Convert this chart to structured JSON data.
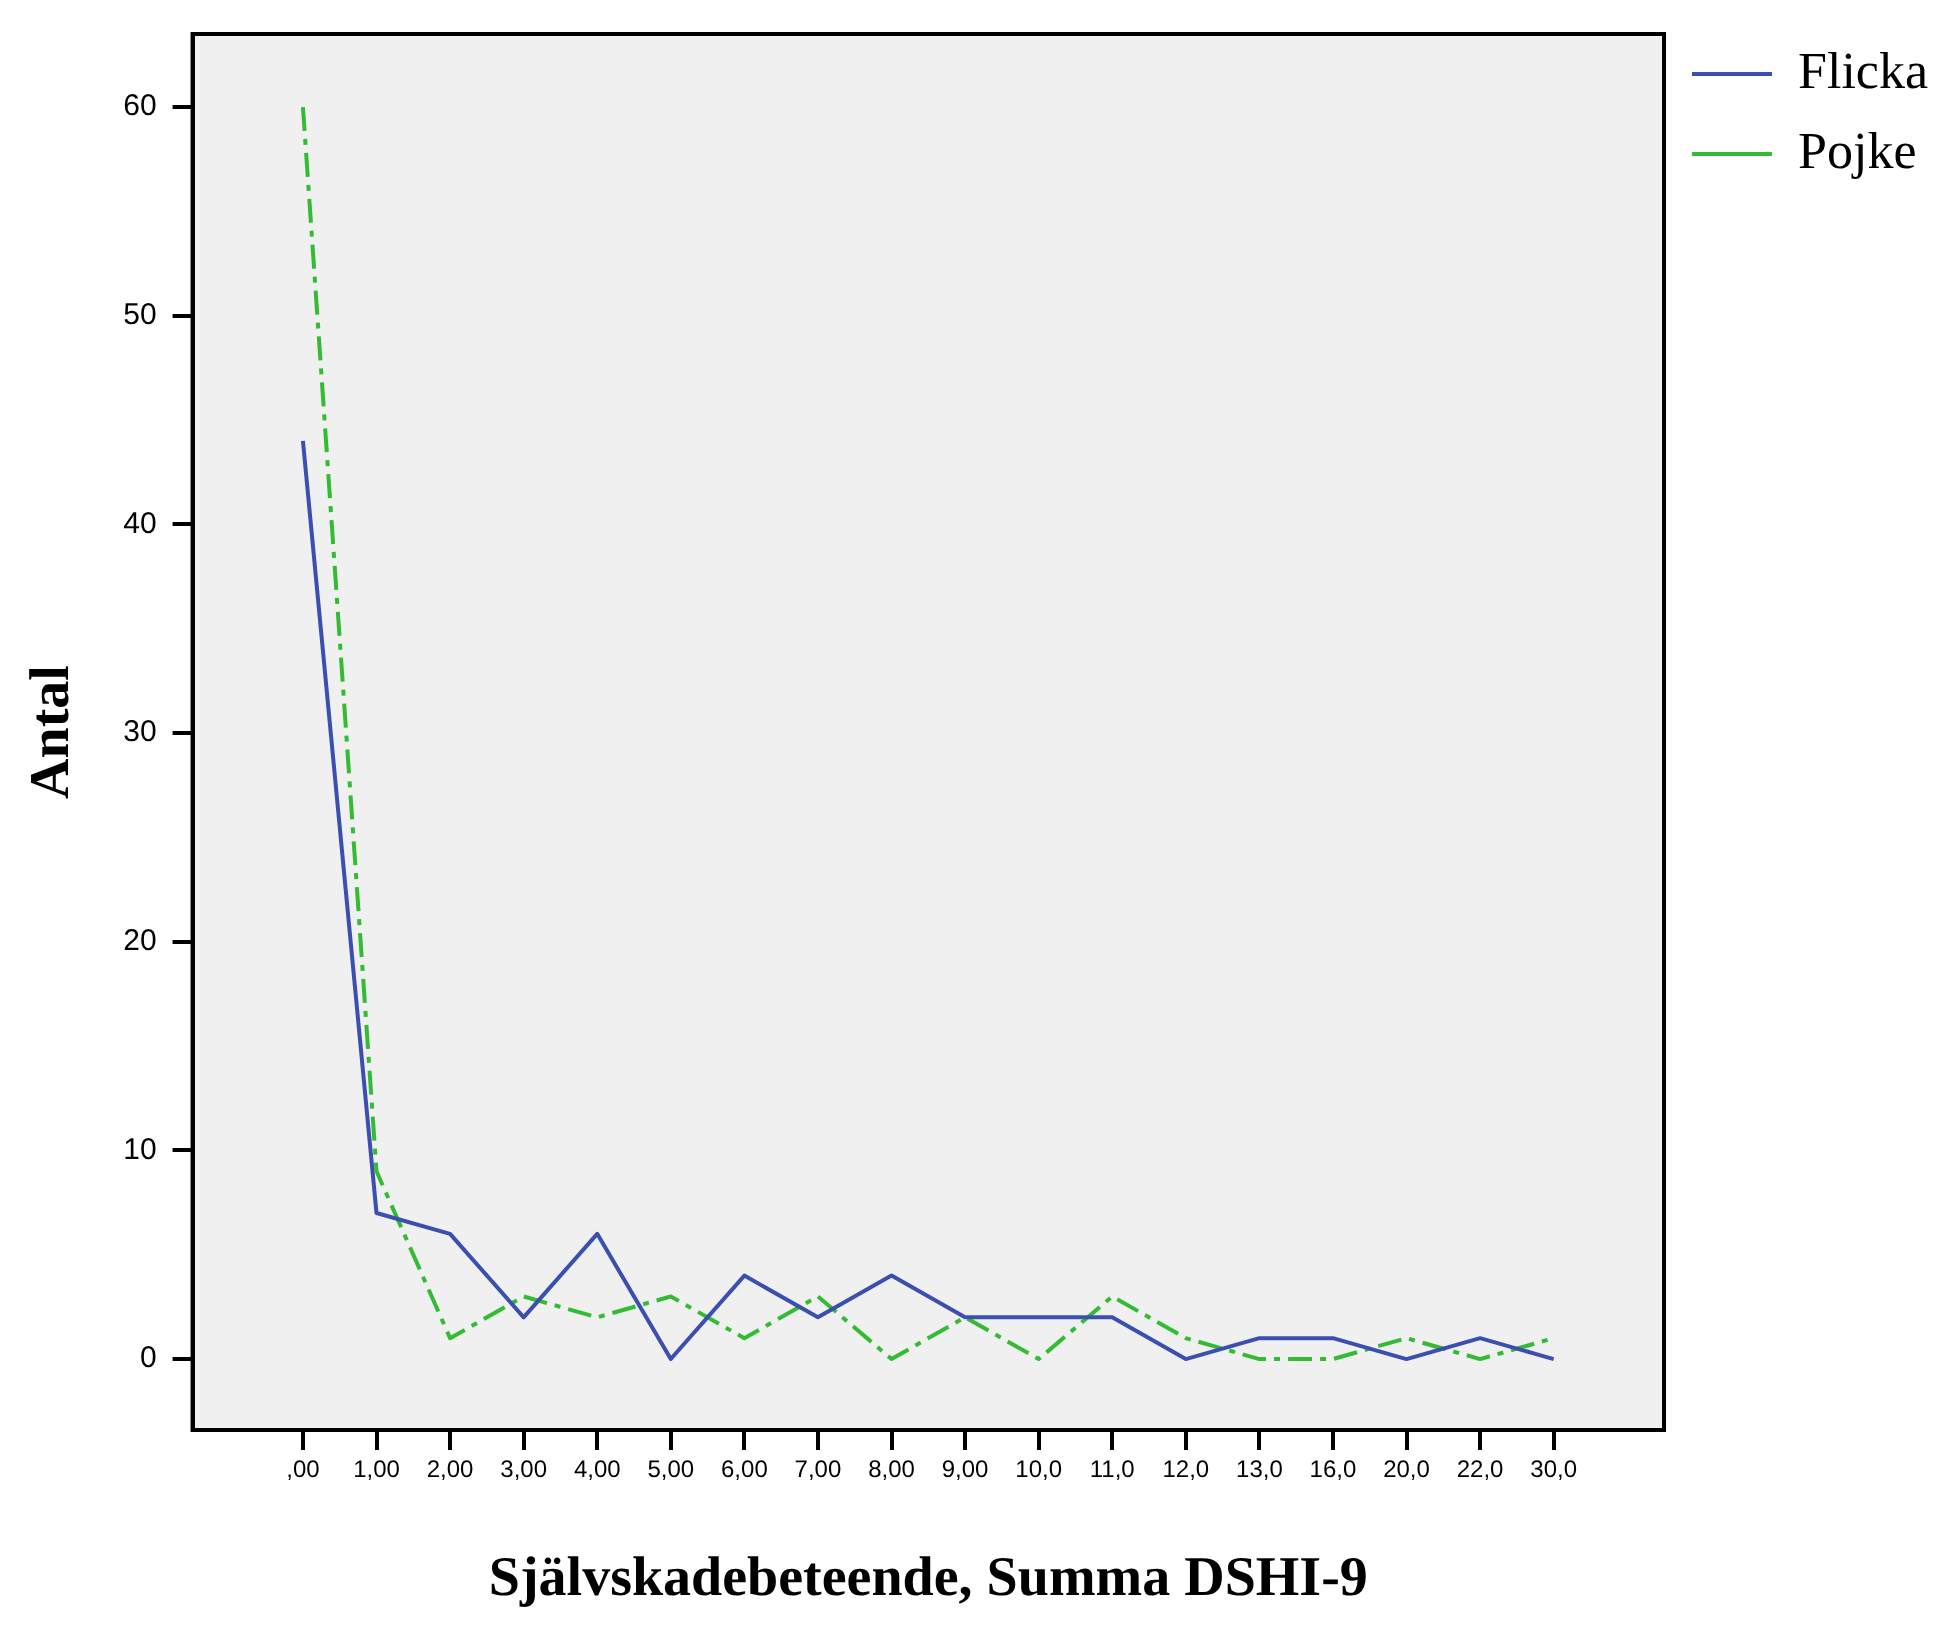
{
  "chart_data": {
    "type": "line",
    "xlabel": "Självskadebeteende, Summa DSHI-9",
    "ylabel": "Antal",
    "categories": [
      ",00",
      "1,00",
      "2,00",
      "3,00",
      "4,00",
      "5,00",
      "6,00",
      "7,00",
      "8,00",
      "9,00",
      "10,0",
      "11,0",
      "12,0",
      "13,0",
      "16,0",
      "20,0",
      "22,0",
      "30,0"
    ],
    "series": [
      {
        "name": "Flicka",
        "color": "#3a4fb0",
        "line_style": "solid",
        "values": [
          44,
          7,
          6,
          2,
          6,
          0,
          4,
          2,
          4,
          2,
          2,
          2,
          0,
          1,
          1,
          0,
          1,
          0
        ]
      },
      {
        "name": "Pojke",
        "color": "#33bb33",
        "line_style": "dashed",
        "values": [
          60,
          9,
          1,
          3,
          2,
          3,
          1,
          3,
          0,
          2,
          0,
          3,
          1,
          0,
          0,
          1,
          0,
          1
        ]
      }
    ],
    "ylim": [
      -3.4,
      63.5
    ],
    "yticks": [
      0,
      10,
      20,
      30,
      40,
      50,
      60
    ],
    "grid": false,
    "legend": "top right",
    "marker": "none"
  }
}
